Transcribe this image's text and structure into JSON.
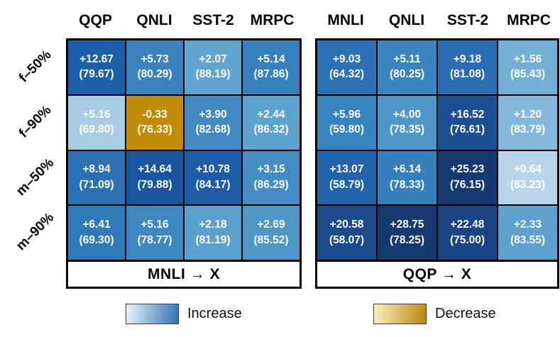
{
  "legend": {
    "increase_label": "Increase",
    "decrease_label": "Decrease",
    "increase_gradient": [
      "#eef4fa",
      "#2d72b4"
    ],
    "decrease_gradient": [
      "#fdf2c3",
      "#b8860b"
    ]
  },
  "colors": {
    "grid_line": "#000000",
    "cell_text": "#ffffff",
    "label_text": "#000000",
    "background": "#ffffff"
  },
  "chart_data": [
    {
      "type": "heatmap",
      "title": "MNLI → X",
      "columns": [
        "QQP",
        "QNLI",
        "SST-2",
        "MRPC"
      ],
      "rows": [
        "f–50%",
        "f–90%",
        "m–50%",
        "m–90%"
      ],
      "value_format": "+delta over (accuracy)",
      "delta": [
        [
          12.67,
          5.73,
          2.07,
          5.14
        ],
        [
          5.16,
          -0.33,
          3.9,
          2.44
        ],
        [
          8.94,
          14.64,
          10.78,
          3.15
        ],
        [
          6.41,
          5.16,
          2.18,
          2.69
        ]
      ],
      "accuracy": [
        [
          79.67,
          80.29,
          88.19,
          87.86
        ],
        [
          69.8,
          76.33,
          82.68,
          86.32
        ],
        [
          71.09,
          79.88,
          84.17,
          86.29
        ],
        [
          69.3,
          78.77,
          81.19,
          85.52
        ]
      ],
      "cell_colors": [
        [
          "#1e5fa9",
          "#3982be",
          "#61a5d1",
          "#3680bd"
        ],
        [
          "#a8cce4",
          "#c18d08",
          "#428ac2",
          "#5ca3d0"
        ],
        [
          "#2a71b4",
          "#1a56a0",
          "#1d5ca7",
          "#448dc4"
        ],
        [
          "#2f7ab9",
          "#3e88c2",
          "#5ba1ce",
          "#4e97c9"
        ]
      ]
    },
    {
      "type": "heatmap",
      "title": "QQP → X",
      "columns": [
        "MNLI",
        "QNLI",
        "SST-2",
        "MRPC"
      ],
      "rows": [
        "f–50%",
        "f–90%",
        "m–50%",
        "m–90%"
      ],
      "value_format": "+delta over (accuracy)",
      "delta": [
        [
          9.03,
          5.11,
          9.18,
          1.56
        ],
        [
          5.96,
          4.0,
          16.52,
          1.2
        ],
        [
          13.07,
          6.14,
          25.23,
          0.64
        ],
        [
          20.58,
          28.75,
          22.48,
          2.33
        ]
      ],
      "accuracy": [
        [
          64.32,
          80.25,
          81.08,
          85.43
        ],
        [
          59.8,
          78.35,
          76.61,
          83.79
        ],
        [
          58.79,
          78.33,
          76.15,
          83.23
        ],
        [
          58.07,
          78.25,
          75.0,
          83.55
        ]
      ],
      "cell_colors": [
        [
          "#2a70b4",
          "#3a84bf",
          "#2a6db2",
          "#74b0d6"
        ],
        [
          "#3583bf",
          "#4e97ca",
          "#1c4f94",
          "#85b9db"
        ],
        [
          "#2164ac",
          "#347fbc",
          "#153a72",
          "#b9d5ea"
        ],
        [
          "#1c4b8c",
          "#16396f",
          "#1a4484",
          "#5da2cf"
        ]
      ]
    }
  ]
}
